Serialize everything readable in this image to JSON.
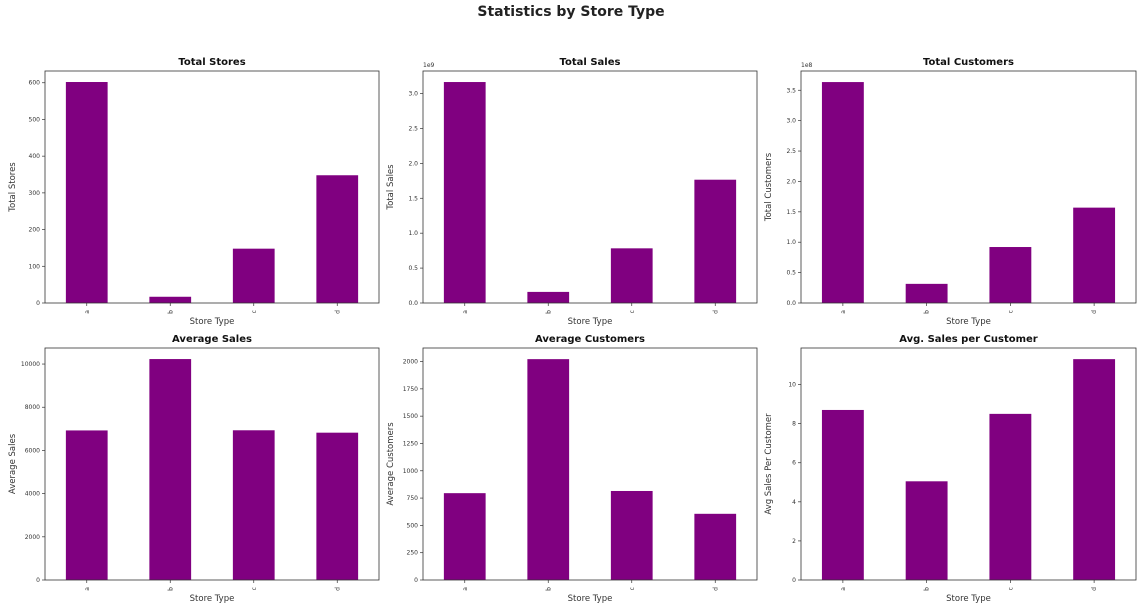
{
  "title": "Statistics by Store Type",
  "colors": {
    "bar": "#800080"
  },
  "chart_data": [
    {
      "type": "bar",
      "title": "Total Stores",
      "xlabel": "Store Type",
      "ylabel": "Total Stores",
      "categories": [
        "a",
        "b",
        "c",
        "d"
      ],
      "values": [
        602,
        17,
        148,
        348
      ],
      "ylim": [
        0,
        632
      ],
      "yticks": [
        0,
        100,
        200,
        300,
        400,
        500,
        600
      ],
      "ytick_labels": [
        "0",
        "100",
        "200",
        "300",
        "400",
        "500",
        "600"
      ],
      "offset_label": ""
    },
    {
      "type": "bar",
      "title": "Total Sales",
      "xlabel": "Store Type",
      "ylabel": "Total Sales",
      "categories": [
        "a",
        "b",
        "c",
        "d"
      ],
      "values": [
        3165000000,
        159000000,
        783000000,
        1766000000
      ],
      "ylim": [
        0,
        3323000000
      ],
      "yticks": [
        0,
        500000000,
        1000000000,
        1500000000,
        2000000000,
        2500000000,
        3000000000
      ],
      "ytick_labels": [
        "0.0",
        "0.5",
        "1.0",
        "1.5",
        "2.0",
        "2.5",
        "3.0"
      ],
      "offset_label": "1e9"
    },
    {
      "type": "bar",
      "title": "Total Customers",
      "xlabel": "Store Type",
      "ylabel": "Total Customers",
      "categories": [
        "a",
        "b",
        "c",
        "d"
      ],
      "values": [
        363500000,
        31500000,
        92100000,
        156900000
      ],
      "ylim": [
        0,
        381700000
      ],
      "yticks": [
        0,
        50000000,
        100000000,
        150000000,
        200000000,
        250000000,
        300000000,
        350000000
      ],
      "ytick_labels": [
        "0.0",
        "0.5",
        "1.0",
        "1.5",
        "2.0",
        "2.5",
        "3.0",
        "3.5"
      ],
      "offset_label": "1e8"
    },
    {
      "type": "bar",
      "title": "Average Sales",
      "xlabel": "Store Type",
      "ylabel": "Average Sales",
      "categories": [
        "a",
        "b",
        "c",
        "d"
      ],
      "values": [
        6926,
        10231,
        6933,
        6822
      ],
      "ylim": [
        0,
        10743
      ],
      "yticks": [
        0,
        2000,
        4000,
        6000,
        8000,
        10000
      ],
      "ytick_labels": [
        "0",
        "2000",
        "4000",
        "6000",
        "8000",
        "10000"
      ],
      "offset_label": ""
    },
    {
      "type": "bar",
      "title": "Average Customers",
      "xlabel": "Store Type",
      "ylabel": "Average Customers",
      "categories": [
        "a",
        "b",
        "c",
        "d"
      ],
      "values": [
        795,
        2022,
        815,
        606
      ],
      "ylim": [
        0,
        2124
      ],
      "yticks": [
        0,
        250,
        500,
        750,
        1000,
        1250,
        1500,
        1750,
        2000
      ],
      "ytick_labels": [
        "0",
        "250",
        "500",
        "750",
        "1000",
        "1250",
        "1500",
        "1750",
        "2000"
      ],
      "offset_label": ""
    },
    {
      "type": "bar",
      "title": "Avg. Sales per Customer",
      "xlabel": "Store Type",
      "ylabel": "Avg Sales Per Customer",
      "categories": [
        "a",
        "b",
        "c",
        "d"
      ],
      "values": [
        8.7,
        5.05,
        8.5,
        11.3
      ],
      "ylim": [
        0,
        11.87
      ],
      "yticks": [
        0,
        2,
        4,
        6,
        8,
        10
      ],
      "ytick_labels": [
        "0",
        "2",
        "4",
        "6",
        "8",
        "10"
      ],
      "offset_label": ""
    }
  ]
}
